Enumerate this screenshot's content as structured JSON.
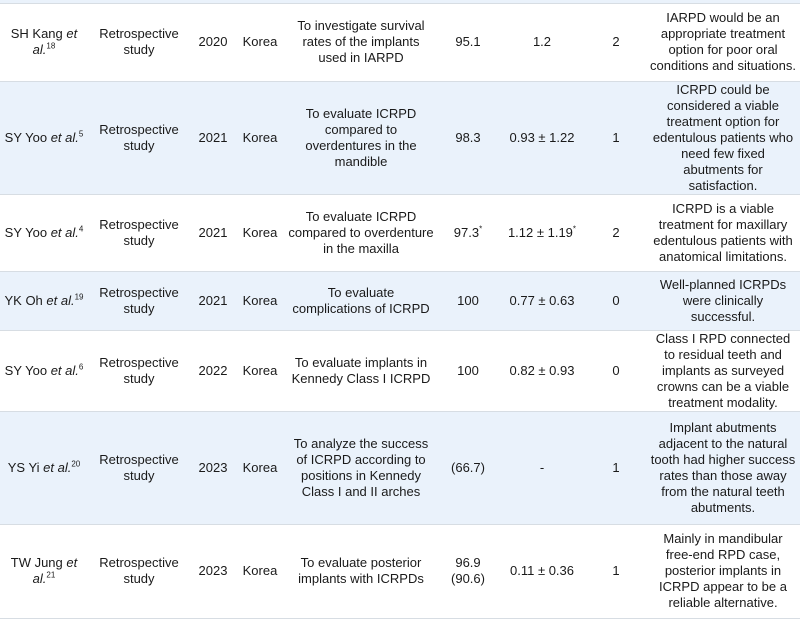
{
  "rows": [
    {
      "author": "SH Kang",
      "etal": "et al.",
      "ref": "18",
      "design": "Retrospective study",
      "year": "2020",
      "country": "Korea",
      "purpose": "To investigate survival rates of the implants used in IARPD",
      "survival": "95.1",
      "survival_mark": "",
      "bone_loss": "1.2",
      "bone_loss_mark": "",
      "complications": "2",
      "conclusion": "IARPD would be an appropriate treatment option for poor oral conditions and situations."
    },
    {
      "author": "SY Yoo",
      "etal": "et al.",
      "ref": "5",
      "design": "Retrospective study",
      "year": "2021",
      "country": "Korea",
      "purpose": "To evaluate ICRPD compared to overdentures in the mandible",
      "survival": "98.3",
      "survival_mark": "",
      "bone_loss": "0.93 ± 1.22",
      "bone_loss_mark": "",
      "complications": "1",
      "conclusion": "ICRPD could be considered a viable treatment option for edentulous patients who need few fixed abutments for satisfaction."
    },
    {
      "author": "SY Yoo",
      "etal": "et al.",
      "ref": "4",
      "design": "Retrospective study",
      "year": "2021",
      "country": "Korea",
      "purpose": "To evaluate ICRPD compared to overdenture in the maxilla",
      "survival": "97.3",
      "survival_mark": "*",
      "bone_loss": "1.12 ± 1.19",
      "bone_loss_mark": "*",
      "complications": "2",
      "conclusion": "ICRPD is a viable treatment for maxillary edentulous patients with anatomical limitations."
    },
    {
      "author": "YK Oh",
      "etal": "et al.",
      "ref": "19",
      "design": "Retrospective study",
      "year": "2021",
      "country": "Korea",
      "purpose": "To evaluate complications of ICRPD",
      "survival": "100",
      "survival_mark": "",
      "bone_loss": "0.77 ± 0.63",
      "bone_loss_mark": "",
      "complications": "0",
      "conclusion": "Well-planned ICRPDs were clinically successful."
    },
    {
      "author": "SY Yoo",
      "etal": "et al.",
      "ref": "6",
      "design": "Retrospective study",
      "year": "2022",
      "country": "Korea",
      "purpose": "To evaluate implants in Kennedy Class I ICRPD",
      "survival": "100",
      "survival_mark": "",
      "bone_loss": "0.82 ± 0.93",
      "bone_loss_mark": "",
      "complications": "0",
      "conclusion": "Class I RPD connected to residual teeth and implants as surveyed crowns can be a viable treatment modality."
    },
    {
      "author": "YS Yi",
      "etal": "et al.",
      "ref": "20",
      "design": "Retrospective study",
      "year": "2023",
      "country": "Korea",
      "purpose": "To analyze the success of ICRPD according to positions in Kennedy Class I and II arches",
      "survival": "(66.7)",
      "survival_mark": "",
      "bone_loss": "-",
      "bone_loss_mark": "",
      "complications": "1",
      "conclusion": "Implant abutments adjacent to the natural tooth had higher success rates than those away from the natural teeth abutments."
    },
    {
      "author": "TW Jung",
      "etal": "et al.",
      "ref": "21",
      "design": "Retrospective study",
      "year": "2023",
      "country": "Korea",
      "purpose": "To evaluate posterior implants with ICRPDs",
      "survival": "96.9 (90.6)",
      "survival_mark": "",
      "bone_loss": "0.11 ± 0.36",
      "bone_loss_mark": "",
      "complications": "1",
      "conclusion": "Mainly in mandibular free-end RPD case, posterior implants in ICRPD appear to be a reliable alternative."
    }
  ]
}
